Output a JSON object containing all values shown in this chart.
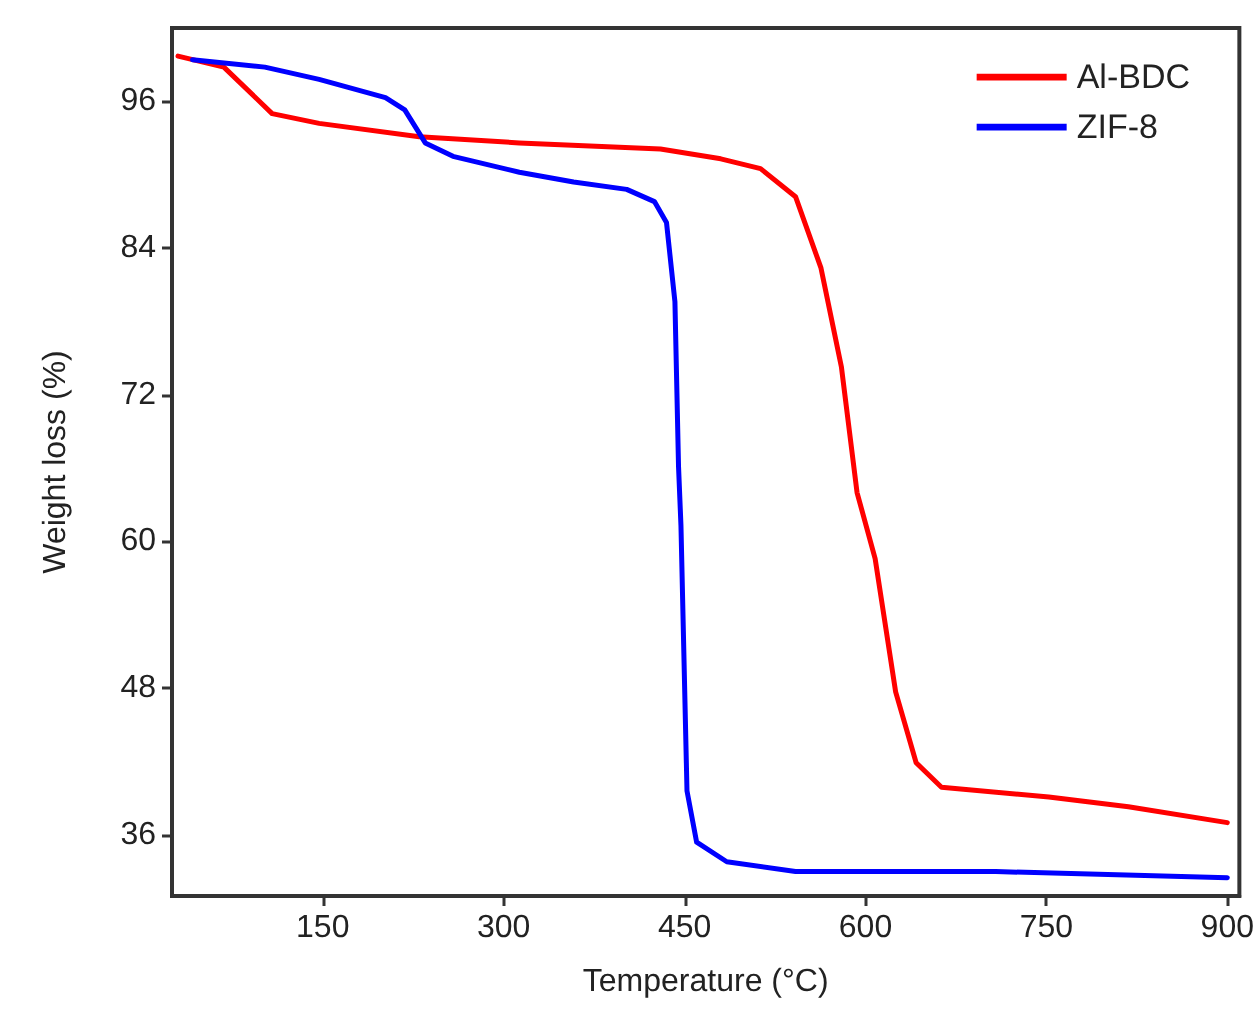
{
  "chart_data": {
    "type": "line",
    "xlabel": "Temperature (°C)",
    "ylabel": "Weight loss (%)",
    "xlim": [
      25,
      910
    ],
    "ylim": [
      31,
      102
    ],
    "xticks": [
      150,
      300,
      450,
      600,
      750,
      900
    ],
    "yticks": [
      36,
      48,
      60,
      72,
      84,
      96
    ],
    "grid": false,
    "legend": "top right",
    "marker": "none",
    "line_style": "solid",
    "series": [
      {
        "name": "Al-BDC",
        "color": "#ff0000",
        "x": [
          30,
          68,
          108,
          147,
          230,
          313,
          430,
          480,
          513,
          542,
          563,
          580,
          593,
          608,
          625,
          642,
          663,
          752,
          818,
          900
        ],
        "values": [
          99.7,
          98.8,
          95.0,
          94.2,
          93.1,
          92.6,
          92.1,
          91.3,
          90.5,
          88.2,
          82.4,
          74.3,
          64.0,
          58.6,
          47.7,
          41.9,
          39.9,
          39.1,
          38.3,
          37.0
        ]
      },
      {
        "name": "ZIF-8",
        "color": "#0000ff",
        "x": [
          42,
          102,
          147,
          202,
          218,
          235,
          258,
          313,
          358,
          402,
          425,
          435,
          442,
          445,
          447,
          452,
          460,
          485,
          542,
          708,
          900
        ],
        "values": [
          99.4,
          98.8,
          97.8,
          96.3,
          95.3,
          92.6,
          91.5,
          90.2,
          89.4,
          88.8,
          87.8,
          86.1,
          79.6,
          66.1,
          61.3,
          39.6,
          35.4,
          33.8,
          33.0,
          33.0,
          32.5
        ]
      }
    ]
  }
}
